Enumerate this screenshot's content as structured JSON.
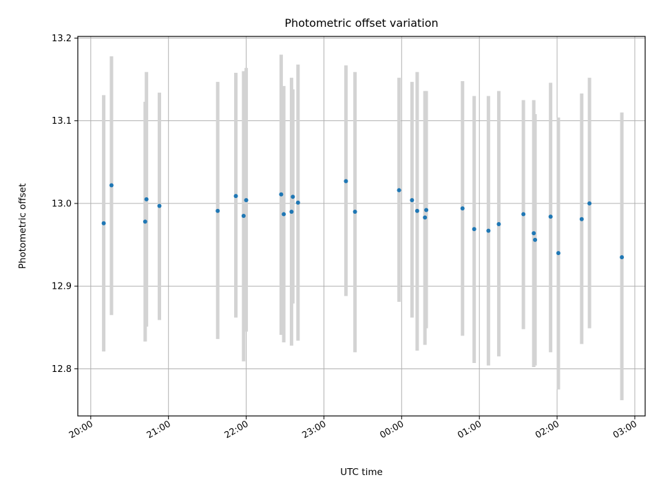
{
  "chart_data": {
    "type": "scatter",
    "title": "Photometric offset variation",
    "xlabel": "UTC time",
    "ylabel": "Photometric offset",
    "x_tick_labels": [
      "20:00",
      "21:00",
      "22:00",
      "23:00",
      "00:00",
      "01:00",
      "02:00",
      "03:00"
    ],
    "y_tick_labels": [
      "12.8",
      "12.9",
      "13.0",
      "13.1",
      "13.2"
    ],
    "y_ticks": [
      12.8,
      12.9,
      13.0,
      13.1,
      13.2
    ],
    "xlim": [
      "19:50",
      "03:08"
    ],
    "ylim": [
      12.743,
      13.202
    ],
    "grid": true,
    "point_color": "#1f77b4",
    "errorbar_color": "#d3d3d3",
    "points": [
      {
        "t": "20:10",
        "y": 12.976,
        "ylo": 12.821,
        "yhi": 13.131
      },
      {
        "t": "20:16",
        "y": 13.022,
        "ylo": 12.865,
        "yhi": 13.178
      },
      {
        "t": "20:42",
        "y": 12.978,
        "ylo": 12.833,
        "yhi": 13.123
      },
      {
        "t": "20:43",
        "y": 13.005,
        "ylo": 12.851,
        "yhi": 13.159
      },
      {
        "t": "20:53",
        "y": 12.997,
        "ylo": 12.859,
        "yhi": 13.134
      },
      {
        "t": "21:38",
        "y": 12.991,
        "ylo": 12.836,
        "yhi": 13.147
      },
      {
        "t": "21:52",
        "y": 13.009,
        "ylo": 12.862,
        "yhi": 13.158
      },
      {
        "t": "21:58",
        "y": 12.985,
        "ylo": 12.809,
        "yhi": 13.16
      },
      {
        "t": "22:00",
        "y": 13.004,
        "ylo": 12.845,
        "yhi": 13.164
      },
      {
        "t": "22:27",
        "y": 13.011,
        "ylo": 12.841,
        "yhi": 13.18
      },
      {
        "t": "22:29",
        "y": 12.987,
        "ylo": 12.832,
        "yhi": 13.142
      },
      {
        "t": "22:35",
        "y": 12.99,
        "ylo": 12.828,
        "yhi": 13.152
      },
      {
        "t": "22:36",
        "y": 13.008,
        "ylo": 12.879,
        "yhi": 13.138
      },
      {
        "t": "22:40",
        "y": 13.001,
        "ylo": 12.834,
        "yhi": 13.168
      },
      {
        "t": "23:17",
        "y": 13.027,
        "ylo": 12.888,
        "yhi": 13.167
      },
      {
        "t": "23:24",
        "y": 12.99,
        "ylo": 12.82,
        "yhi": 13.159
      },
      {
        "t": "23:58",
        "y": 13.016,
        "ylo": 12.881,
        "yhi": 13.152
      },
      {
        "t": "00:08",
        "y": 13.004,
        "ylo": 12.862,
        "yhi": 13.147
      },
      {
        "t": "00:12",
        "y": 12.991,
        "ylo": 12.822,
        "yhi": 13.159
      },
      {
        "t": "00:18",
        "y": 12.983,
        "ylo": 12.829,
        "yhi": 13.136
      },
      {
        "t": "00:19",
        "y": 12.992,
        "ylo": 12.849,
        "yhi": 13.136
      },
      {
        "t": "00:47",
        "y": 12.994,
        "ylo": 12.84,
        "yhi": 13.148
      },
      {
        "t": "00:56",
        "y": 12.969,
        "ylo": 12.807,
        "yhi": 13.13
      },
      {
        "t": "01:07",
        "y": 12.967,
        "ylo": 12.804,
        "yhi": 13.13
      },
      {
        "t": "01:15",
        "y": 12.975,
        "ylo": 12.815,
        "yhi": 13.136
      },
      {
        "t": "01:34",
        "y": 12.987,
        "ylo": 12.848,
        "yhi": 13.125
      },
      {
        "t": "01:42",
        "y": 12.964,
        "ylo": 12.802,
        "yhi": 13.125
      },
      {
        "t": "01:43",
        "y": 12.956,
        "ylo": 12.804,
        "yhi": 13.108
      },
      {
        "t": "01:55",
        "y": 12.984,
        "ylo": 12.82,
        "yhi": 13.146
      },
      {
        "t": "02:01",
        "y": 12.94,
        "ylo": 12.775,
        "yhi": 13.104
      },
      {
        "t": "02:19",
        "y": 12.981,
        "ylo": 12.83,
        "yhi": 13.133
      },
      {
        "t": "02:25",
        "y": 13.0,
        "ylo": 12.849,
        "yhi": 13.152
      },
      {
        "t": "02:50",
        "y": 12.935,
        "ylo": 12.762,
        "yhi": 13.11
      }
    ]
  }
}
